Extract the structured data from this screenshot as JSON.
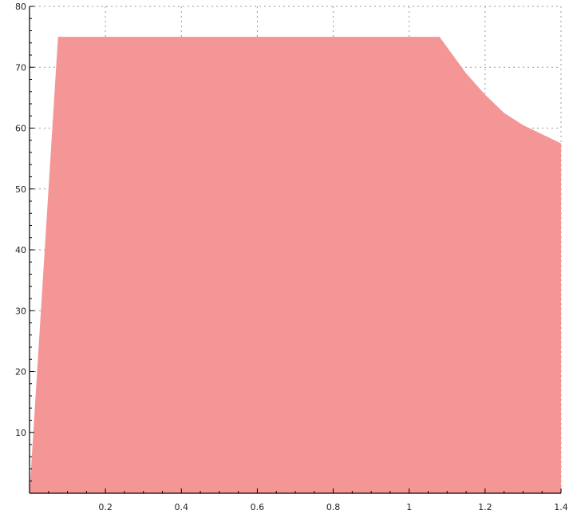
{
  "chart_data": {
    "type": "area",
    "title": "",
    "xlabel": "",
    "ylabel": "",
    "xlim": [
      0,
      1.4
    ],
    "ylim": [
      0,
      80
    ],
    "grid": true,
    "legend": "none",
    "fill_color": "#f59696",
    "x_ticks": [
      0.2,
      0.4,
      0.6,
      0.8,
      1,
      1.2,
      1.4
    ],
    "x_tick_labels": [
      "0.2",
      "0.4",
      "0.6",
      "0.8",
      "1",
      "1.2",
      "1.4"
    ],
    "y_ticks": [
      10,
      20,
      30,
      40,
      50,
      60,
      70,
      80
    ],
    "y_tick_labels": [
      "10",
      "20",
      "30",
      "40",
      "50",
      "60",
      "70",
      "80"
    ],
    "series": [
      {
        "x": [
          0,
          0.075,
          1.08,
          1.15,
          1.2,
          1.25,
          1.3,
          1.35,
          1.4
        ],
        "y": [
          0,
          75,
          75,
          69,
          65.5,
          62.5,
          60.5,
          59,
          57.5
        ]
      }
    ]
  }
}
